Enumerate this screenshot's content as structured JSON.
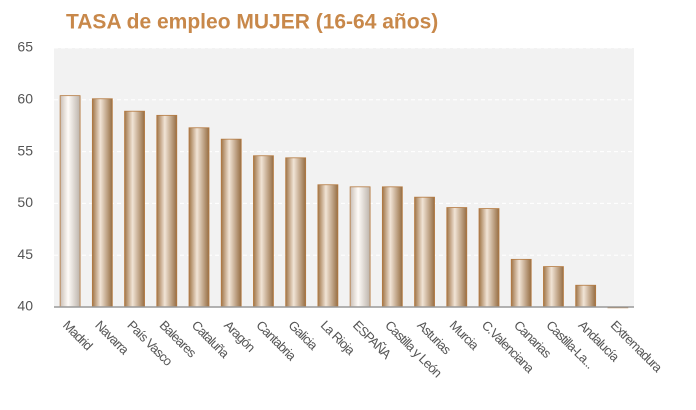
{
  "chart_data": {
    "type": "bar",
    "title": "TASA de empleo MUJER (16-64 años)",
    "categories": [
      "Madrid",
      "Navarra",
      "País Vasco",
      "Baleares",
      "Cataluña",
      "Aragón",
      "Cantabria",
      "Galicia",
      "La Rioja",
      "ESPAÑA",
      "Castilla y León",
      "Asturias",
      "Murcia",
      "C.Valenciana",
      "Canarias",
      "Castilla-La...",
      "Andalucía",
      "Extremadura"
    ],
    "values": [
      60.4,
      60.1,
      58.9,
      58.5,
      57.3,
      56.2,
      54.6,
      54.4,
      51.8,
      51.6,
      51.6,
      50.6,
      49.6,
      49.5,
      44.6,
      43.9,
      42.1,
      40
    ],
    "colors": [
      "#fbeee2",
      "#c8925a",
      "#c8925a",
      "#c8925a",
      "#c8925a",
      "#c8925a",
      "#c8925a",
      "#c8925a",
      "#c8925a",
      "#fbeee2",
      "#c8925a",
      "#c8925a",
      "#c8925a",
      "#c8925a",
      "#c8925a",
      "#c8925a",
      "#c8925a",
      "#c8925a"
    ],
    "ylim": [
      40,
      65
    ],
    "yticks": [
      40,
      45,
      50,
      55,
      60,
      65
    ],
    "grid": true
  }
}
